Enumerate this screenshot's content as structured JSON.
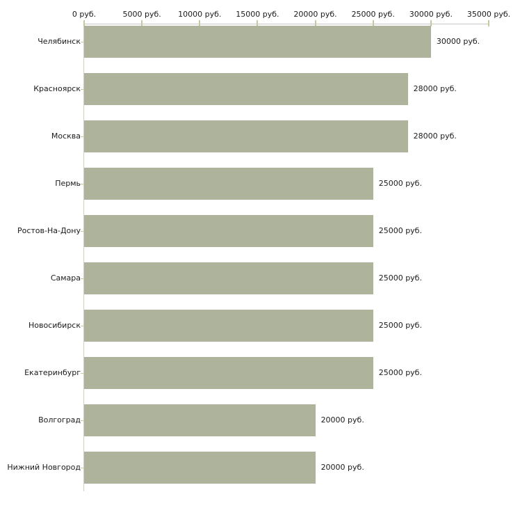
{
  "chart_data": {
    "type": "bar",
    "orientation": "horizontal",
    "title": "",
    "xlabel": "",
    "ylabel": "",
    "unit": "руб.",
    "xlim": [
      0,
      35000
    ],
    "grid": false,
    "legend": false,
    "categories": [
      "Челябинск",
      "Красноярск",
      "Москва",
      "Пермь",
      "Ростов-На-Дону",
      "Самара",
      "Новосибирск",
      "Екатеринбург",
      "Волгоград",
      "Нижний Новгород"
    ],
    "values": [
      30000,
      28000,
      28000,
      25000,
      25000,
      25000,
      25000,
      25000,
      20000,
      20000
    ],
    "value_labels": [
      "30000 руб.",
      "28000 руб.",
      "28000 руб.",
      "25000 руб.",
      "25000 руб.",
      "25000 руб.",
      "25000 руб.",
      "25000 руб.",
      "20000 руб.",
      "20000 руб."
    ],
    "x_ticks": [
      {
        "value": 0,
        "label": "0 руб."
      },
      {
        "value": 5000,
        "label": "5000 руб."
      },
      {
        "value": 10000,
        "label": "10000 руб."
      },
      {
        "value": 15000,
        "label": "15000 руб."
      },
      {
        "value": 20000,
        "label": "20000 руб."
      },
      {
        "value": 25000,
        "label": "25000 руб."
      },
      {
        "value": 30000,
        "label": "30000 руб."
      },
      {
        "value": 35000,
        "label": "35000 руб."
      }
    ],
    "colors": {
      "bar": "#aeb49b",
      "axis_line": "#c6c6c6",
      "left_line": "#cfcfc4",
      "tick": "#c8c89e",
      "text": "#1a1a1a",
      "background": "#ffffff"
    }
  }
}
